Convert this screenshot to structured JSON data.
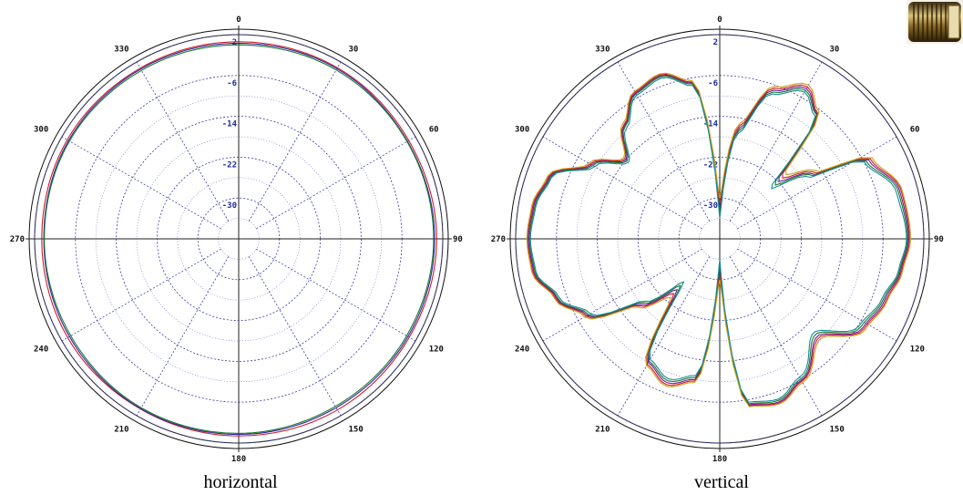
{
  "chart_data": [
    {
      "type": "polar-line",
      "caption": "horizontal",
      "angle_ticks": [
        "0",
        "30",
        "60",
        "90",
        "120",
        "150",
        "180",
        "210",
        "240",
        "270",
        "300",
        "330"
      ],
      "radial_ticks": [
        "2",
        "-6",
        "-14",
        "-22",
        "-30"
      ],
      "rlim": [
        -38,
        2
      ],
      "grid": true,
      "series": [
        {
          "color": "#d11a2a",
          "angles": [
            0,
            30,
            60,
            90,
            120,
            150,
            180,
            210,
            240,
            270,
            300,
            330,
            360
          ],
          "gains_db": [
            0.6,
            0.7,
            0.5,
            0.8,
            0.6,
            0.7,
            0.6,
            0.5,
            0.7,
            0.6,
            0.8,
            0.6,
            0.6
          ]
        },
        {
          "color": "#2a2aa8",
          "angles": [
            0,
            30,
            60,
            90,
            120,
            150,
            180,
            210,
            240,
            270,
            300,
            330,
            360
          ],
          "gains_db": [
            0.3,
            0.5,
            0.2,
            0.4,
            0.3,
            0.2,
            0.3,
            0.4,
            0.3,
            0.2,
            0.5,
            0.4,
            0.3
          ]
        },
        {
          "color": "#1a7a2a",
          "angles": [
            0,
            30,
            60,
            90,
            120,
            150,
            180,
            210,
            240,
            270,
            300,
            330,
            360
          ],
          "gains_db": [
            0.0,
            0.2,
            0.1,
            0.2,
            0.0,
            -0.1,
            0.1,
            0.2,
            0.0,
            0.1,
            0.3,
            0.1,
            0.0
          ]
        }
      ]
    },
    {
      "type": "polar-line",
      "caption": "vertical",
      "angle_ticks": [
        "0",
        "30",
        "60",
        "90",
        "120",
        "150",
        "180",
        "210",
        "240",
        "270",
        "300",
        "330"
      ],
      "radial_ticks": [
        "2",
        "-6",
        "-14",
        "-22",
        "-30"
      ],
      "rlim": [
        -38,
        2
      ],
      "grid": true,
      "series": [
        {
          "color": "#6a1a9a",
          "angles": [
            0,
            10,
            20,
            30,
            38,
            45,
            55,
            62,
            75,
            90,
            100,
            110,
            122,
            135,
            150,
            160,
            170,
            180,
            190,
            200,
            210,
            220,
            230,
            240,
            250,
            260,
            270,
            280,
            290,
            300,
            310,
            320,
            330,
            340,
            350,
            360
          ],
          "gains_db": [
            -32,
            -16,
            -7,
            -4,
            -7,
            -22,
            -16,
            -5,
            -1.5,
            -1,
            -2,
            -3.5,
            -5,
            -11,
            -6,
            -4,
            -5,
            -32,
            -10,
            -8,
            -10,
            -25,
            -18,
            -8,
            -4,
            -1,
            -0.5,
            -1,
            -2.5,
            -9,
            -14,
            -9,
            -5,
            -4,
            -7,
            -32
          ]
        },
        {
          "color": "#d11a2a",
          "angles": [
            0,
            10,
            20,
            30,
            38,
            45,
            55,
            62,
            75,
            90,
            100,
            110,
            122,
            135,
            150,
            160,
            170,
            180,
            190,
            200,
            210,
            220,
            230,
            240,
            250,
            260,
            270,
            280,
            290,
            300,
            310,
            320,
            330,
            340,
            350,
            360
          ],
          "gains_db": [
            -31,
            -15.5,
            -6.6,
            -3.6,
            -6.8,
            -21,
            -15.5,
            -4.6,
            -1.2,
            -0.8,
            -1.8,
            -3.2,
            -4.7,
            -10.6,
            -5.8,
            -3.8,
            -4.8,
            -31,
            -9.7,
            -7.6,
            -9.6,
            -24,
            -17.6,
            -7.7,
            -3.8,
            -0.8,
            -0.3,
            -0.8,
            -2.3,
            -8.7,
            -13.7,
            -8.8,
            -4.8,
            -3.8,
            -6.8,
            -31
          ]
        },
        {
          "color": "#1a7a2a",
          "angles": [
            0,
            10,
            20,
            30,
            38,
            45,
            55,
            62,
            75,
            90,
            100,
            110,
            122,
            135,
            150,
            160,
            170,
            180,
            190,
            200,
            210,
            220,
            230,
            240,
            250,
            260,
            270,
            280,
            290,
            300,
            310,
            320,
            330,
            340,
            350,
            360
          ],
          "gains_db": [
            -33,
            -16.5,
            -7.4,
            -4.4,
            -7.2,
            -23,
            -16.4,
            -5.5,
            -1.8,
            -1.2,
            -2.2,
            -3.8,
            -5.4,
            -11.5,
            -6.3,
            -4.3,
            -5.2,
            -33,
            -10.4,
            -8.4,
            -10.3,
            -26,
            -18.5,
            -8.3,
            -4.2,
            -1.2,
            -0.7,
            -1.2,
            -2.7,
            -9.3,
            -14.3,
            -9.2,
            -5.2,
            -4.2,
            -7.2,
            -33
          ]
        },
        {
          "color": "#c8a21a",
          "angles": [
            0,
            10,
            20,
            30,
            38,
            45,
            55,
            62,
            75,
            90,
            100,
            110,
            122,
            135,
            150,
            160,
            170,
            180,
            190,
            200,
            210,
            220,
            230,
            240,
            250,
            260,
            270,
            280,
            290,
            300,
            310,
            320,
            330,
            340,
            350,
            360
          ],
          "gains_db": [
            -30,
            -15,
            -6.2,
            -3.2,
            -6.4,
            -20,
            -15,
            -4.2,
            -1,
            -0.6,
            -1.6,
            -3,
            -4.4,
            -10.2,
            -5.5,
            -3.6,
            -4.6,
            -30,
            -9.4,
            -7.3,
            -9.3,
            -23,
            -17.2,
            -7.4,
            -3.6,
            -0.6,
            -0.2,
            -0.6,
            -2.1,
            -8.4,
            -13.4,
            -8.5,
            -4.6,
            -3.6,
            -6.5,
            -30
          ]
        },
        {
          "color": "#1a8a9a",
          "angles": [
            0,
            10,
            20,
            30,
            38,
            45,
            55,
            62,
            75,
            90,
            100,
            110,
            122,
            135,
            150,
            160,
            170,
            180,
            190,
            200,
            210,
            220,
            230,
            240,
            250,
            260,
            270,
            280,
            290,
            300,
            310,
            320,
            330,
            340,
            350,
            360
          ],
          "gains_db": [
            -34,
            -17,
            -7.8,
            -4.8,
            -7.6,
            -24,
            -17,
            -5.9,
            -2.2,
            -1.4,
            -2.4,
            -4.1,
            -5.8,
            -12,
            -6.7,
            -4.6,
            -5.5,
            -34,
            -10.8,
            -8.8,
            -10.7,
            -27,
            -19,
            -8.7,
            -4.5,
            -1.4,
            -0.9,
            -1.4,
            -2.9,
            -9.7,
            -14.7,
            -9.6,
            -5.5,
            -4.5,
            -7.5,
            -34
          ]
        }
      ]
    }
  ],
  "icons": {
    "thumbnail": "connector-photo-icon"
  }
}
